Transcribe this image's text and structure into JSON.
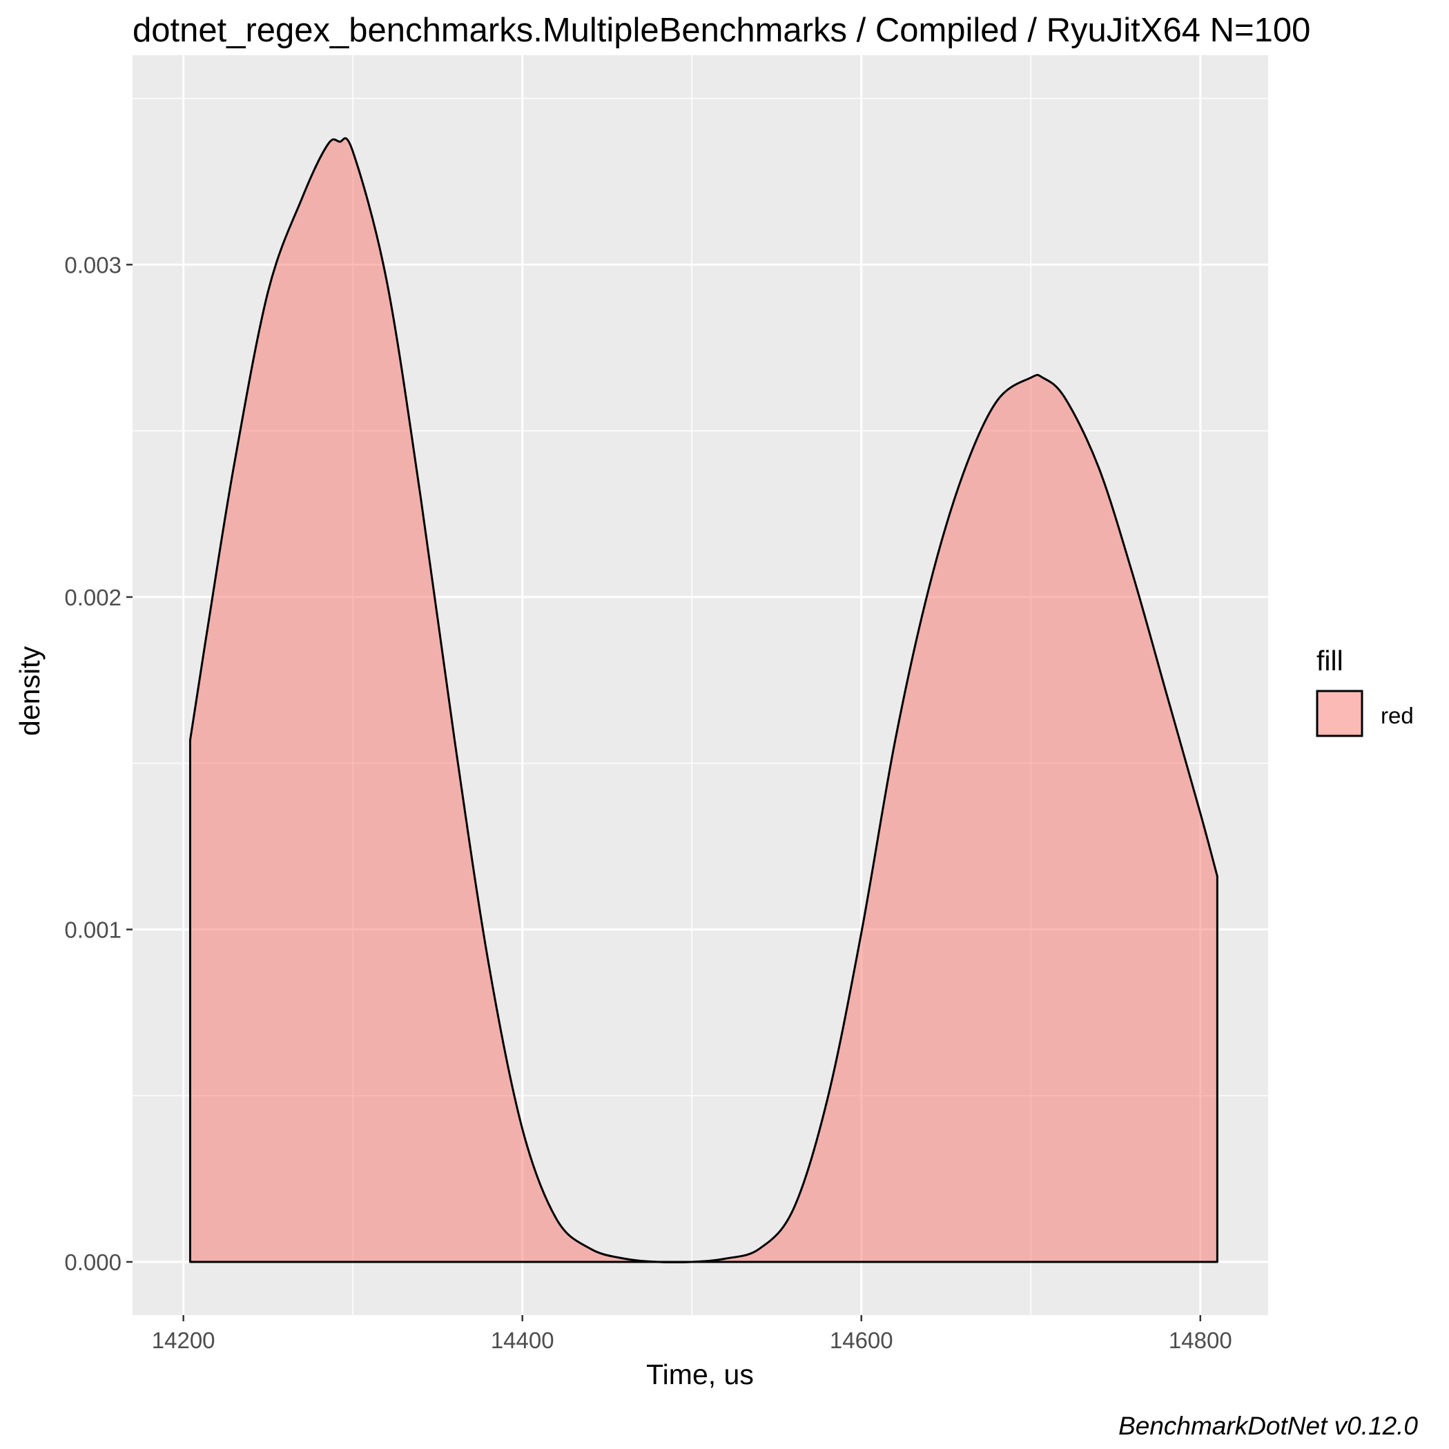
{
  "title": "dotnet_regex_benchmarks.MultipleBenchmarks / Compiled / RyuJitX64 N=100",
  "caption": "BenchmarkDotNet v0.12.0",
  "chart_data": {
    "type": "area",
    "title": "dotnet_regex_benchmarks.MultipleBenchmarks / Compiled / RyuJitX64 N=100",
    "xlabel": "Time, us",
    "ylabel": "density",
    "xlim": [
      14170,
      14840
    ],
    "ylim": [
      -0.00016,
      0.00363
    ],
    "x_ticks": [
      14200,
      14400,
      14600,
      14800
    ],
    "x_tick_labels": [
      "14200",
      "14400",
      "14600",
      "14800"
    ],
    "y_ticks": [
      0.0,
      0.001,
      0.002,
      0.003
    ],
    "y_tick_labels": [
      "0.000",
      "0.001",
      "0.002",
      "0.003"
    ],
    "grid": true,
    "legend": {
      "title": "fill",
      "position": "right",
      "entries": [
        {
          "label": "red",
          "color": "#f8766d"
        }
      ]
    },
    "series": [
      {
        "name": "red",
        "fill": "#f8766d",
        "fill_opacity": 0.5,
        "stroke": "#000000",
        "x": [
          14204,
          14215,
          14230,
          14250,
          14270,
          14285,
          14292,
          14300,
          14320,
          14340,
          14360,
          14380,
          14400,
          14420,
          14440,
          14460,
          14480,
          14500,
          14520,
          14540,
          14560,
          14580,
          14600,
          14620,
          14640,
          14660,
          14680,
          14700,
          14707,
          14720,
          14740,
          14760,
          14780,
          14800,
          14810
        ],
        "y": [
          0.00157,
          0.00193,
          0.0024,
          0.00292,
          0.0032,
          0.00336,
          0.00337,
          0.00334,
          0.00295,
          0.0023,
          0.00157,
          0.0009,
          0.0004,
          0.00013,
          4e-05,
          1e-05,
          0.0,
          0.0,
          1e-05,
          4e-05,
          0.00016,
          0.00049,
          0.00099,
          0.00157,
          0.00203,
          0.00237,
          0.00259,
          0.00266,
          0.00266,
          0.0026,
          0.00239,
          0.00207,
          0.00171,
          0.00135,
          0.00116
        ]
      }
    ]
  }
}
